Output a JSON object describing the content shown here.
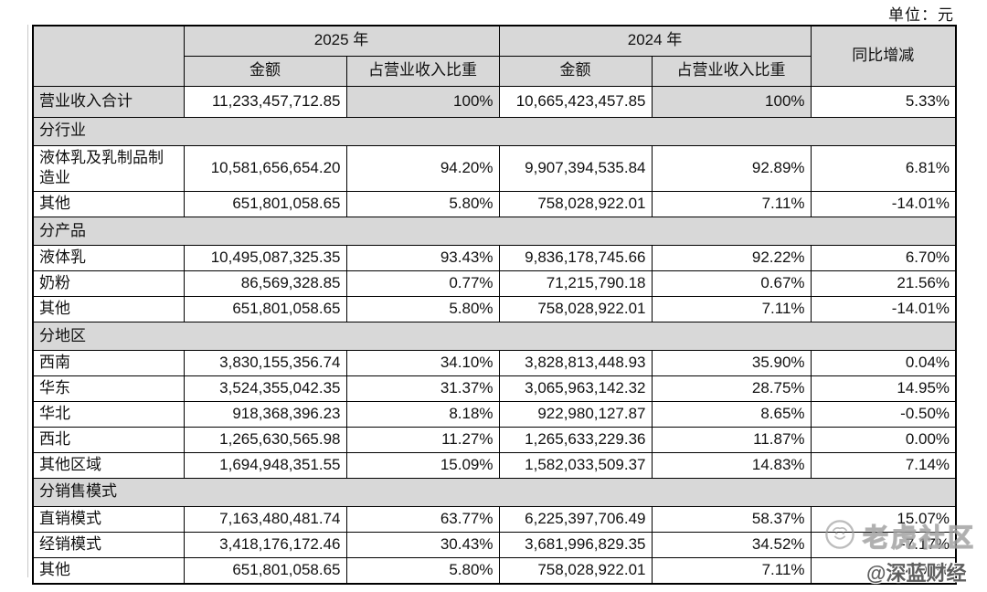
{
  "meta": {
    "unit_label": "单位：元"
  },
  "colors": {
    "cell_shade": "#d8d8d8",
    "border": "#000000",
    "watermark_outline_gray": "#b0b0b0",
    "watermark_handle_gray": "#3c3c3c"
  },
  "table": {
    "header": {
      "corner": "",
      "year_2025": "2025 年",
      "year_2024": "2024 年",
      "yoy": "同比增减",
      "columns_2025": {
        "amount": "金额",
        "ratio": "占营业收入比重"
      },
      "columns_2024": {
        "amount": "金额",
        "ratio": "占营业收入比重"
      }
    },
    "rows": [
      {
        "type": "total",
        "label": "营业收入合计",
        "cells": [
          "11,233,457,712.85",
          "100%",
          "10,665,423,457.85",
          "100%",
          "5.33%"
        ]
      },
      {
        "type": "section",
        "label": "分行业"
      },
      {
        "type": "data",
        "label": "液体乳及乳制品制造业",
        "cells": [
          "10,581,656,654.20",
          "94.20%",
          "9,907,394,535.84",
          "92.89%",
          "6.81%"
        ]
      },
      {
        "type": "data",
        "label": "其他",
        "cells": [
          "651,801,058.65",
          "5.80%",
          "758,028,922.01",
          "7.11%",
          "-14.01%"
        ]
      },
      {
        "type": "section",
        "label": "分产品"
      },
      {
        "type": "data",
        "label": "液体乳",
        "cells": [
          "10,495,087,325.35",
          "93.43%",
          "9,836,178,745.66",
          "92.22%",
          "6.70%"
        ]
      },
      {
        "type": "data",
        "label": "奶粉",
        "cells": [
          "86,569,328.85",
          "0.77%",
          "71,215,790.18",
          "0.67%",
          "21.56%"
        ]
      },
      {
        "type": "data",
        "label": "其他",
        "cells": [
          "651,801,058.65",
          "5.80%",
          "758,028,922.01",
          "7.11%",
          "-14.01%"
        ]
      },
      {
        "type": "section",
        "label": "分地区"
      },
      {
        "type": "data",
        "label": "西南",
        "cells": [
          "3,830,155,356.74",
          "34.10%",
          "3,828,813,448.93",
          "35.90%",
          "0.04%"
        ]
      },
      {
        "type": "data",
        "label": "华东",
        "cells": [
          "3,524,355,042.35",
          "31.37%",
          "3,065,963,142.32",
          "28.75%",
          "14.95%"
        ]
      },
      {
        "type": "data",
        "label": "华北",
        "cells": [
          "918,368,396.23",
          "8.18%",
          "922,980,127.87",
          "8.65%",
          "-0.50%"
        ]
      },
      {
        "type": "data",
        "label": "西北",
        "cells": [
          "1,265,630,565.98",
          "11.27%",
          "1,265,633,229.36",
          "11.87%",
          "0.00%"
        ]
      },
      {
        "type": "data",
        "label": "其他区域",
        "cells": [
          "1,694,948,351.55",
          "15.09%",
          "1,582,033,509.37",
          "14.83%",
          "7.14%"
        ]
      },
      {
        "type": "section",
        "label": "分销售模式"
      },
      {
        "type": "data",
        "label": "直销模式",
        "cells": [
          "7,163,480,481.74",
          "63.77%",
          "6,225,397,706.49",
          "58.37%",
          "15.07%"
        ]
      },
      {
        "type": "data",
        "label": "经销模式",
        "cells": [
          "3,418,176,172.46",
          "30.43%",
          "3,681,996,829.35",
          "34.52%",
          "-7.17%"
        ]
      },
      {
        "type": "data",
        "label": "其他",
        "cells": [
          "651,801,058.65",
          "5.80%",
          "758,028,922.01",
          "7.11%",
          "-14.01%"
        ]
      }
    ]
  },
  "watermark": {
    "community_label": "老虎社区",
    "handle": "@深蓝财经",
    "logo": "tiger-logo"
  }
}
